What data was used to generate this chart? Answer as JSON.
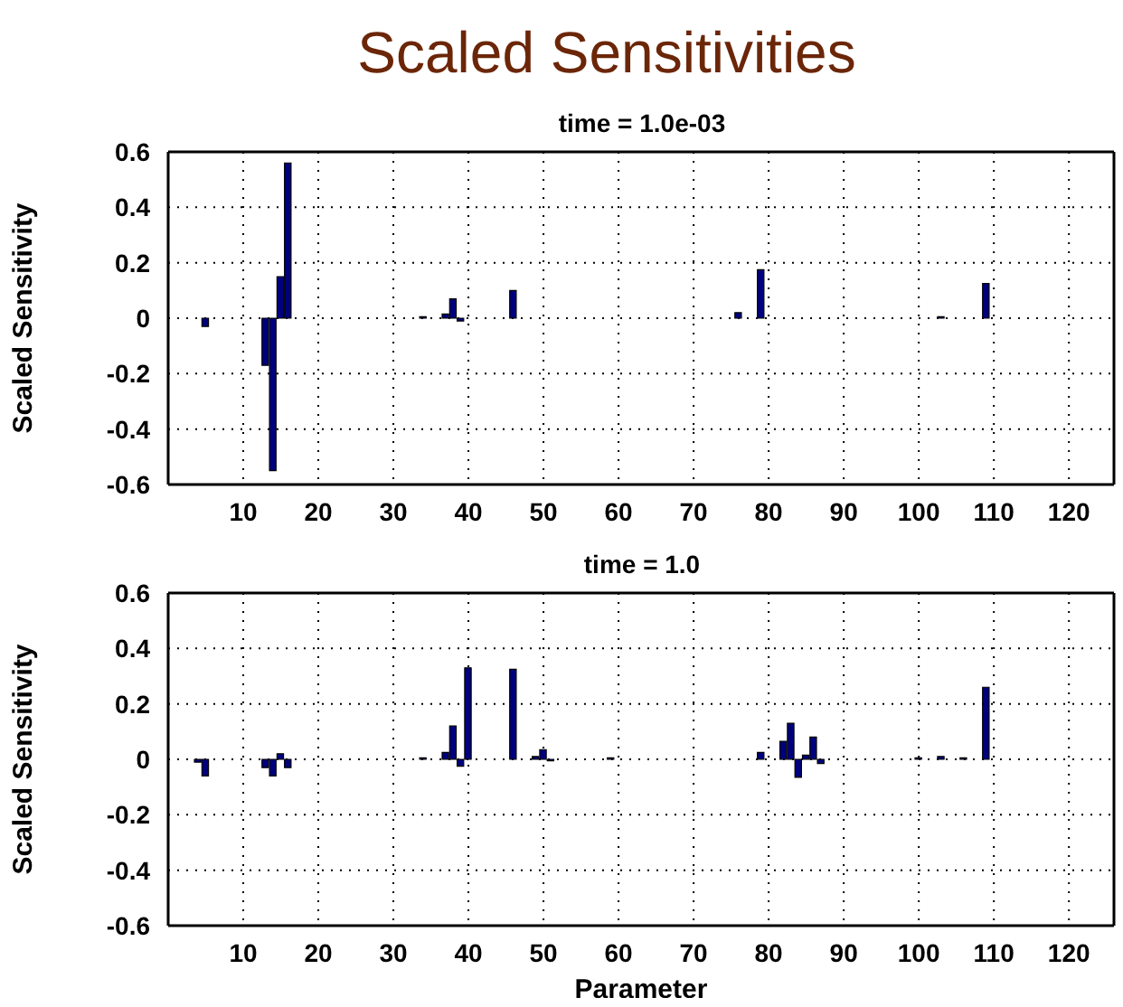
{
  "chart_data": [
    {
      "type": "bar",
      "title": "Scaled Sensitivities",
      "subtitle": "time = 1.0e-03",
      "ylabel": "Scaled Sensitivity",
      "x": [
        1,
        2,
        3,
        4,
        5,
        6,
        7,
        8,
        9,
        10,
        11,
        12,
        13,
        14,
        15,
        16,
        17,
        18,
        19,
        20,
        21,
        22,
        23,
        24,
        25,
        26,
        27,
        28,
        29,
        30,
        31,
        32,
        33,
        34,
        35,
        36,
        37,
        38,
        39,
        40,
        41,
        42,
        43,
        44,
        45,
        46,
        47,
        48,
        49,
        50,
        51,
        52,
        53,
        54,
        55,
        56,
        57,
        58,
        59,
        60,
        61,
        62,
        63,
        64,
        65,
        66,
        67,
        68,
        69,
        70,
        71,
        72,
        73,
        74,
        75,
        76,
        77,
        78,
        79,
        80,
        81,
        82,
        83,
        84,
        85,
        86,
        87,
        88,
        89,
        90,
        91,
        92,
        93,
        94,
        95,
        96,
        97,
        98,
        99,
        100,
        101,
        102,
        103,
        104,
        105,
        106,
        107,
        108,
        109,
        110,
        111,
        112,
        113,
        114,
        115,
        116,
        117,
        118,
        119,
        120,
        121,
        122,
        123,
        124,
        125
      ],
      "series": [
        {
          "color": "#00007f",
          "values": [
            0,
            0,
            0,
            0,
            -0.03,
            0,
            0,
            0,
            0,
            0,
            0,
            0,
            -0.17,
            -0.55,
            0.15,
            0.56,
            0,
            0,
            0,
            0,
            0,
            0,
            0,
            0,
            0,
            0,
            0,
            0,
            0,
            0,
            0,
            0,
            0,
            0.005,
            0,
            0,
            0.015,
            0.07,
            -0.01,
            0,
            0,
            0,
            0,
            0,
            0,
            0.1,
            0,
            0,
            0,
            0,
            0,
            0,
            0,
            0,
            0,
            0,
            0,
            0,
            0,
            0,
            0,
            0,
            0,
            0,
            0,
            0,
            0,
            0,
            0,
            0,
            0,
            0,
            0,
            0,
            0,
            0.02,
            0,
            0,
            0.175,
            0,
            0,
            0,
            0,
            0,
            0,
            0,
            0,
            0,
            0,
            0,
            0,
            0,
            0,
            0,
            0,
            0,
            0,
            0,
            0,
            0,
            0,
            0,
            0.005,
            0,
            0,
            0,
            0,
            0,
            0.125,
            0,
            0,
            0,
            0,
            0,
            0,
            0,
            0,
            0,
            0,
            0,
            0,
            0,
            0,
            0,
            0
          ]
        }
      ],
      "xlim": [
        0,
        126
      ],
      "xticks": [
        10,
        20,
        30,
        40,
        50,
        60,
        70,
        80,
        90,
        100,
        110,
        120
      ],
      "ylim": [
        -0.6,
        0.6
      ],
      "yticks": [
        -0.6,
        -0.4,
        -0.2,
        0,
        0.2,
        0.4,
        0.6
      ],
      "grid": true,
      "legend": false
    },
    {
      "type": "bar",
      "subtitle": "time = 1.0",
      "ylabel": "Scaled Sensitivity",
      "xlabel": "Parameter",
      "x": [
        1,
        2,
        3,
        4,
        5,
        6,
        7,
        8,
        9,
        10,
        11,
        12,
        13,
        14,
        15,
        16,
        17,
        18,
        19,
        20,
        21,
        22,
        23,
        24,
        25,
        26,
        27,
        28,
        29,
        30,
        31,
        32,
        33,
        34,
        35,
        36,
        37,
        38,
        39,
        40,
        41,
        42,
        43,
        44,
        45,
        46,
        47,
        48,
        49,
        50,
        51,
        52,
        53,
        54,
        55,
        56,
        57,
        58,
        59,
        60,
        61,
        62,
        63,
        64,
        65,
        66,
        67,
        68,
        69,
        70,
        71,
        72,
        73,
        74,
        75,
        76,
        77,
        78,
        79,
        80,
        81,
        82,
        83,
        84,
        85,
        86,
        87,
        88,
        89,
        90,
        91,
        92,
        93,
        94,
        95,
        96,
        97,
        98,
        99,
        100,
        101,
        102,
        103,
        104,
        105,
        106,
        107,
        108,
        109,
        110,
        111,
        112,
        113,
        114,
        115,
        116,
        117,
        118,
        119,
        120,
        121,
        122,
        123,
        124,
        125
      ],
      "series": [
        {
          "color": "#00007f",
          "values": [
            0,
            0,
            0,
            -0.01,
            -0.06,
            0,
            0,
            0,
            0,
            0,
            0,
            0,
            -0.03,
            -0.06,
            0.02,
            -0.03,
            0,
            0,
            0,
            0,
            0,
            0,
            0,
            0,
            0,
            0,
            0,
            0,
            0,
            0,
            0,
            0,
            0,
            0.005,
            0,
            0,
            0.025,
            0.12,
            -0.025,
            0.33,
            0,
            0,
            0,
            0,
            0,
            0.325,
            0,
            0,
            0.01,
            0.035,
            -0.005,
            0,
            0,
            0,
            0,
            0,
            0,
            0,
            0.005,
            0,
            0,
            0,
            0,
            0,
            0,
            0,
            0,
            0,
            0,
            0,
            0,
            0,
            0,
            0,
            0,
            0,
            0,
            0,
            0.025,
            0,
            0,
            0.065,
            0.13,
            -0.065,
            0.015,
            0.08,
            -0.015,
            0,
            0,
            0,
            0,
            0,
            0,
            0,
            0,
            0,
            0,
            0,
            0,
            0.005,
            0,
            0,
            0.01,
            0,
            0,
            0.005,
            0,
            0,
            0.26,
            0,
            0,
            0,
            0,
            0,
            0,
            0,
            0,
            0,
            0,
            0,
            0,
            0,
            0,
            0,
            0
          ]
        }
      ],
      "xlim": [
        0,
        126
      ],
      "xticks": [
        10,
        20,
        30,
        40,
        50,
        60,
        70,
        80,
        90,
        100,
        110,
        120
      ],
      "ylim": [
        -0.6,
        0.6
      ],
      "yticks": [
        -0.6,
        -0.4,
        -0.2,
        0,
        0.2,
        0.4,
        0.6
      ],
      "grid": true,
      "legend": false
    }
  ]
}
